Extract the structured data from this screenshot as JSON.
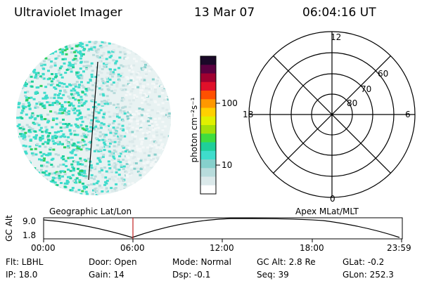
{
  "header": {
    "title": "Ultraviolet Imager",
    "date": "13 Mar 07",
    "time": "06:04:16 UT"
  },
  "colorbar": {
    "label": "photon cm⁻²s⁻¹",
    "ticks": [
      "100",
      "10"
    ],
    "colors": [
      "#ffffff",
      "#dbe9ea",
      "#b8dcdc",
      "#86d0cc",
      "#3fdccc",
      "#1fcf99",
      "#3fdd3f",
      "#a4e00a",
      "#e0f000",
      "#ffd000",
      "#ff9800",
      "#ff5000",
      "#e0102a",
      "#a00030",
      "#5a0040",
      "#1a0828"
    ]
  },
  "polar": {
    "labels": {
      "top": "12",
      "left": "18",
      "right": "6",
      "bottom": "0",
      "lat60": "60",
      "lat70": "70",
      "lat80": "80"
    }
  },
  "timeline": {
    "left_label": "Geographic Lat/Lon",
    "right_label": "Apex MLat/MLT",
    "axis_title": "GC Alt",
    "y_top": "9.0",
    "y_bottom": "1.8",
    "time_ticks": [
      "00:00",
      "06:00",
      "12:00",
      "18:00",
      "23:59"
    ]
  },
  "info": {
    "flt": "Flt: LBHL",
    "ip": "IP: 18.0",
    "door": "Door: Open",
    "gain": "Gain: 14",
    "mode": "Mode: Normal",
    "dsp": "Dsp:    -0.1",
    "gcalt": "GC Alt: 2.8 Re",
    "seq": "Seq: 39",
    "glat": "GLat:   -0.2",
    "glon": "GLon: 252.3"
  }
}
